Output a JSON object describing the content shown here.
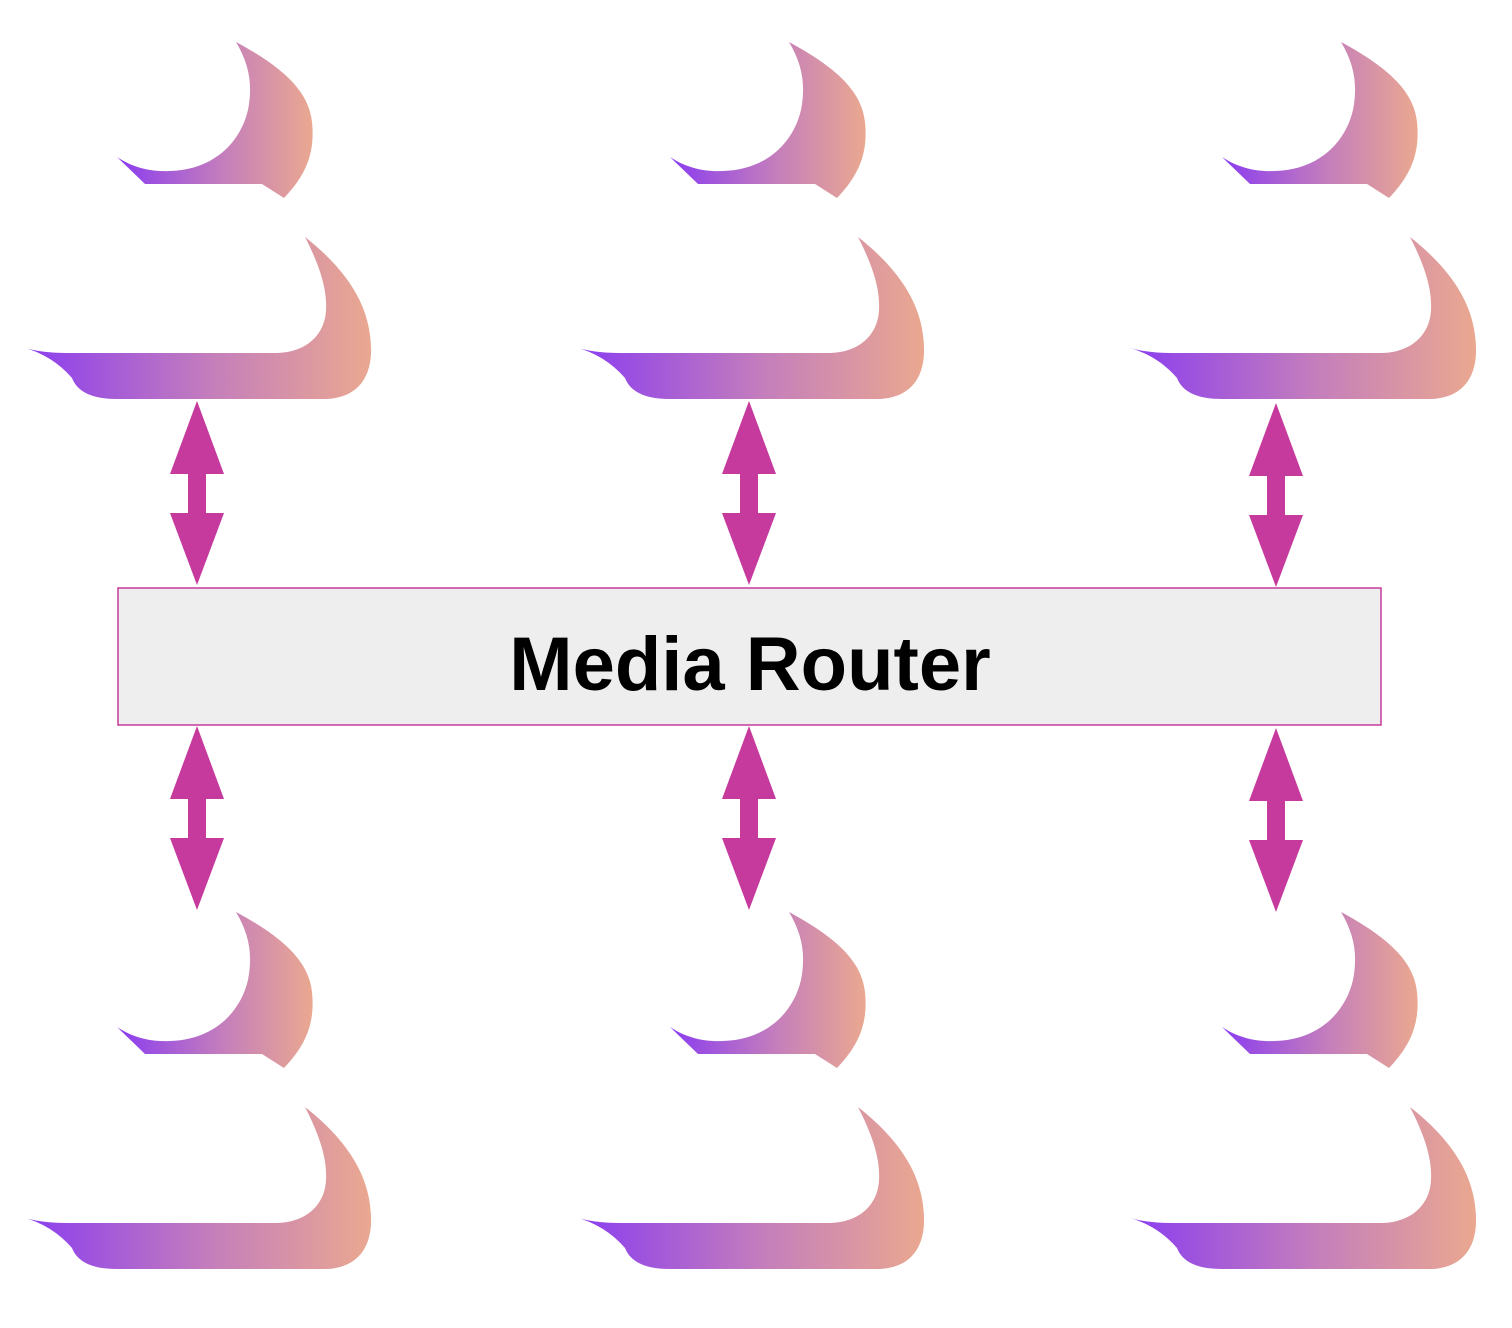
{
  "router": {
    "label": "Media Router"
  },
  "colors": {
    "background": "#ffffff",
    "router_fill": "#eeeeee",
    "router_border": "#c53a9c",
    "arrow": "#c53a9c",
    "label": "#000000",
    "icon_gradient_start": "#8a3cf0",
    "icon_gradient_end": "#eaa890"
  },
  "icons": {
    "top_row": [
      "person-icon",
      "person-icon",
      "person-icon"
    ],
    "bottom_row": [
      "person-icon",
      "person-icon",
      "person-icon"
    ]
  },
  "connectors": {
    "top_row": [
      "bidirectional-arrow-icon",
      "bidirectional-arrow-icon",
      "bidirectional-arrow-icon"
    ],
    "bottom_row": [
      "bidirectional-arrow-icon",
      "bidirectional-arrow-icon",
      "bidirectional-arrow-icon"
    ]
  }
}
